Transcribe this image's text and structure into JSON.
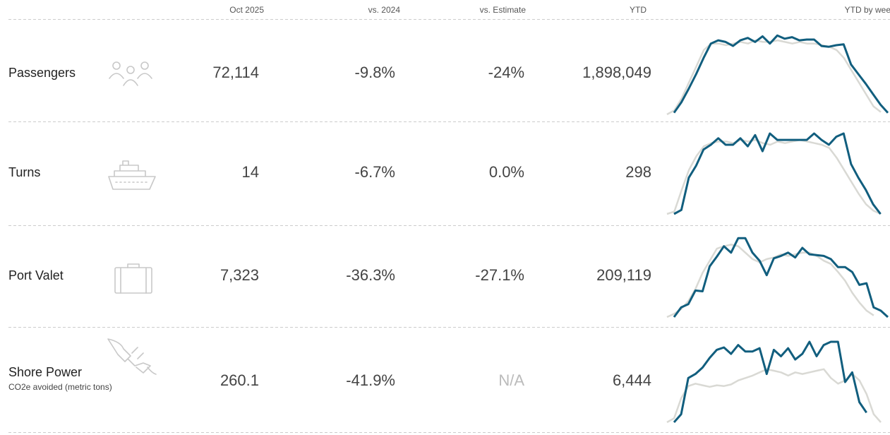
{
  "header": [
    "Oct 2025",
    "vs. 2024",
    "vs. Estimate",
    "YTD",
    "YTD by week"
  ],
  "rows": [
    {
      "label": "Passengers",
      "cells": [
        "72,114",
        "-9.8%",
        "-24%",
        "1,898,049"
      ],
      "sparkline": [
        {
          "color": "#d9d9d4",
          "values": [
            0,
            5,
            20,
            40,
            60,
            80,
            88,
            88,
            86,
            88,
            90,
            88,
            92,
            90,
            90,
            92,
            90,
            88,
            90,
            88,
            88,
            86,
            84,
            80,
            70,
            55,
            40,
            25,
            10,
            3
          ]
        },
        {
          "color": "#115e7e",
          "values": [
            2,
            15,
            32,
            50,
            70,
            88,
            92,
            90,
            85,
            92,
            95,
            90,
            97,
            88,
            98,
            94,
            96,
            92,
            93,
            93,
            85,
            84,
            86,
            87,
            62,
            50,
            38,
            25,
            12,
            2
          ]
        }
      ]
    },
    {
      "label": "Turns",
      "cells": [
        "14",
        "-6.7%",
        "0.0%",
        "298"
      ],
      "sparkline": [
        {
          "color": "#d9d9d4",
          "values": [
            0,
            3,
            30,
            55,
            72,
            84,
            88,
            90,
            90,
            88,
            92,
            90,
            92,
            88,
            86,
            90,
            88,
            90,
            92,
            90,
            88,
            86,
            82,
            70,
            55,
            40,
            25,
            12,
            4,
            0
          ]
        },
        {
          "color": "#115e7e",
          "values": [
            0,
            5,
            45,
            60,
            80,
            86,
            94,
            86,
            86,
            94,
            84,
            98,
            78,
            100,
            92,
            92,
            92,
            92,
            92,
            100,
            92,
            86,
            96,
            100,
            62,
            45,
            30,
            12,
            0
          ]
        }
      ]
    },
    {
      "label": "Port Valet",
      "cells": [
        "7,323",
        "-36.3%",
        "-27.1%",
        "209,119"
      ],
      "sparkline": [
        {
          "color": "#d9d9d4",
          "values": [
            0,
            4,
            10,
            20,
            35,
            55,
            70,
            85,
            88,
            90,
            88,
            80,
            72,
            68,
            72,
            74,
            78,
            76,
            78,
            80,
            80,
            76,
            70,
            66,
            56,
            45,
            30,
            18,
            8,
            2
          ]
        },
        {
          "color": "#115e7e",
          "values": [
            0,
            12,
            16,
            33,
            32,
            63,
            75,
            88,
            80,
            98,
            98,
            80,
            70,
            52,
            73,
            76,
            80,
            74,
            86,
            78,
            77,
            76,
            72,
            62,
            62,
            56,
            40,
            42,
            12,
            8,
            0
          ]
        }
      ]
    },
    {
      "label": "Shore Power",
      "subtitle": "CO2e avoided (metric tons)",
      "cells": [
        "260.1",
        "-41.9%",
        "N/A",
        "6,444"
      ],
      "sparkline": [
        {
          "color": "#d9d9d4",
          "values": [
            0,
            5,
            30,
            45,
            48,
            46,
            44,
            46,
            45,
            47,
            52,
            55,
            58,
            62,
            66,
            64,
            62,
            58,
            62,
            60,
            62,
            64,
            66,
            55,
            48,
            52,
            60,
            52,
            35,
            10,
            0
          ]
        },
        {
          "color": "#115e7e",
          "values": [
            0,
            10,
            55,
            60,
            68,
            80,
            90,
            93,
            85,
            96,
            88,
            88,
            92,
            60,
            90,
            82,
            92,
            78,
            85,
            100,
            82,
            96,
            100,
            100,
            50,
            62,
            25,
            12
          ]
        }
      ]
    }
  ]
}
